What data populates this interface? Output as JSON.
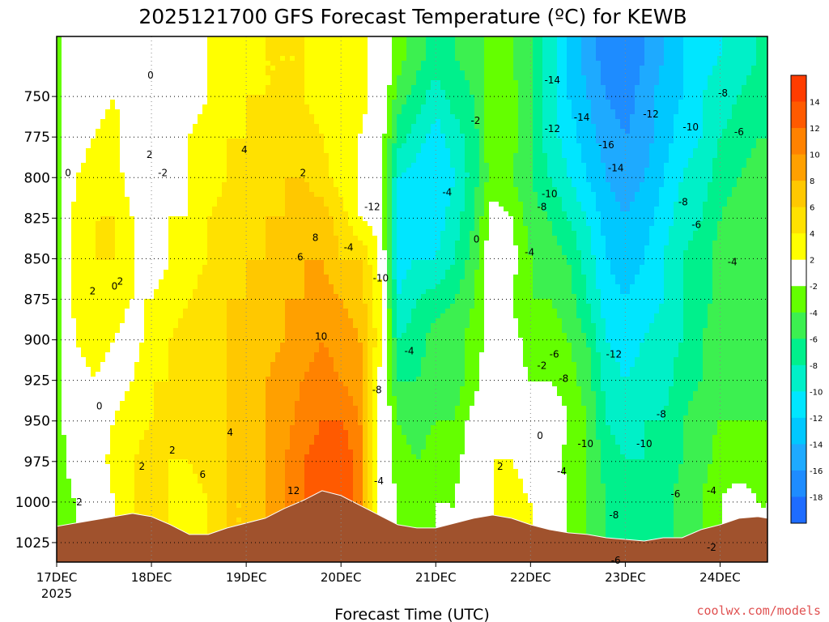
{
  "chart_data": {
    "type": "heatmap",
    "title": "2025121700 GFS Forecast Temperature (ºC) for KEWB",
    "xlabel": "Forecast Time (UTC)",
    "ylabel": "",
    "credit": "coolwx.com/models",
    "x_ticks": [
      "17DEC",
      "18DEC",
      "19DEC",
      "20DEC",
      "21DEC",
      "22DEC",
      "23DEC",
      "24DEC"
    ],
    "x_year": "2025",
    "xlim_days": [
      0,
      7.5
    ],
    "y_ticks": [
      750,
      775,
      800,
      825,
      850,
      875,
      900,
      925,
      950,
      975,
      1000,
      1025
    ],
    "ylim_hpa": [
      713,
      1037
    ],
    "grid": true,
    "colorbar": {
      "levels": [
        -18,
        -16,
        -14,
        -12,
        -10,
        -8,
        -6,
        -4,
        -2,
        2,
        4,
        6,
        8,
        10,
        12,
        14
      ],
      "tick_labels": [
        "-18",
        "-16",
        "-14",
        "-12",
        "-10",
        "-8",
        "-6",
        "-4",
        "-2",
        "2",
        "4",
        "6",
        "8",
        "10",
        "12",
        "14"
      ],
      "colors": [
        "#1e6cff",
        "#1e8cff",
        "#1eaaff",
        "#00c8ff",
        "#00e6ff",
        "#00f0c8",
        "#00f08c",
        "#3cf050",
        "#64ff00",
        "#ffffff",
        "#ffff00",
        "#ffe100",
        "#ffc800",
        "#ffa000",
        "#ff8200",
        "#ff5a00",
        "#ff3c00"
      ],
      "placement": "right"
    },
    "terrain_color": "#a0522d",
    "terrain": {
      "x": [
        0,
        0.2,
        0.4,
        0.6,
        0.8,
        1.0,
        1.2,
        1.4,
        1.6,
        1.8,
        2.0,
        2.2,
        2.4,
        2.6,
        2.8,
        3.0,
        3.2,
        3.4,
        3.6,
        3.8,
        4.0,
        4.2,
        4.4,
        4.6,
        4.8,
        5.0,
        5.2,
        5.4,
        5.6,
        5.8,
        6.0,
        6.2,
        6.4,
        6.6,
        6.8,
        7.0,
        7.2,
        7.4,
        7.5
      ],
      "p": [
        1015,
        1013,
        1011,
        1009,
        1007,
        1009,
        1014,
        1020,
        1020,
        1016,
        1013,
        1010,
        1004,
        999,
        993,
        996,
        1002,
        1008,
        1014,
        1016,
        1016,
        1013,
        1010,
        1008,
        1010,
        1014,
        1017,
        1019,
        1020,
        1022,
        1023,
        1024,
        1022,
        1022,
        1017,
        1014,
        1010,
        1009,
        1010
      ]
    },
    "fields": {
      "x": [
        0,
        0.2,
        0.4,
        0.6,
        0.8,
        1.0,
        1.2,
        1.4,
        1.6,
        1.8,
        2.0,
        2.2,
        2.4,
        2.6,
        2.8,
        3.0,
        3.2,
        3.4,
        3.6,
        3.8,
        4.0,
        4.2,
        4.4,
        4.6,
        4.8,
        5.0,
        5.2,
        5.4,
        5.6,
        5.8,
        6.0,
        6.2,
        6.4,
        6.6,
        6.8,
        7.0,
        7.2,
        7.4,
        7.5
      ],
      "p_levels": [
        725,
        750,
        775,
        800,
        825,
        850,
        875,
        900,
        925,
        950,
        975,
        1000,
        1025
      ],
      "temperature_c": [
        [
          -3,
          -3,
          -3,
          -3,
          -3,
          -3,
          -3,
          -3,
          -3,
          -3,
          -3,
          -3,
          -3
        ],
        [
          0,
          0,
          1,
          2,
          3,
          3,
          3,
          2,
          1,
          0,
          -1,
          -2,
          -2
        ],
        [
          1,
          1,
          2,
          3,
          4,
          4,
          3,
          3,
          2,
          1,
          0,
          -1,
          -1
        ],
        [
          2,
          2,
          3,
          3,
          4,
          4,
          3,
          2,
          1,
          2,
          3,
          2,
          2
        ],
        [
          1,
          1,
          0,
          1,
          2,
          2,
          2,
          1,
          2,
          3,
          4,
          4,
          3
        ],
        [
          0,
          0,
          -1,
          -2,
          1,
          1,
          2,
          3,
          4,
          4,
          5,
          5,
          4
        ],
        [
          1,
          1,
          1,
          1,
          2,
          2,
          3,
          4,
          4,
          4,
          4,
          4,
          4
        ],
        [
          1,
          1,
          2,
          2,
          2,
          3,
          4,
          5,
          5,
          4,
          4,
          3,
          3
        ],
        [
          2,
          2,
          3,
          3,
          4,
          4,
          5,
          5,
          5,
          6,
          5,
          4,
          4
        ],
        [
          3,
          3,
          4,
          4,
          5,
          5,
          6,
          6,
          6,
          6,
          6,
          6,
          6
        ],
        [
          3,
          4,
          4,
          5,
          5,
          6,
          6,
          7,
          7,
          7,
          7,
          6,
          6
        ],
        [
          4,
          4,
          5,
          5,
          6,
          6,
          7,
          7,
          8,
          8,
          8,
          8,
          8
        ],
        [
          4,
          4,
          5,
          6,
          6,
          7,
          8,
          8,
          9,
          9,
          10,
          10,
          10
        ],
        [
          4,
          4,
          5,
          6,
          7,
          8,
          8,
          9,
          10,
          11,
          12,
          12,
          12
        ],
        [
          3,
          3,
          4,
          5,
          7,
          8,
          9,
          10,
          11,
          12,
          13,
          13,
          13
        ],
        [
          3,
          3,
          2,
          3,
          5,
          6,
          8,
          9,
          10,
          12,
          14,
          14,
          14
        ],
        [
          3,
          3,
          2,
          2,
          2,
          6,
          7,
          8,
          9,
          10,
          11,
          11,
          11
        ],
        [
          1,
          1,
          0,
          0,
          1,
          2,
          3,
          3,
          2,
          1,
          0,
          0,
          0
        ],
        [
          -3,
          -5,
          -7,
          -10,
          -11,
          -11,
          -10,
          -8,
          -6,
          -4,
          -3,
          -2,
          -2
        ],
        [
          -5,
          -7,
          -9,
          -11,
          -11,
          -10,
          -8,
          -7,
          -6,
          -5,
          -4,
          -3,
          -3
        ],
        [
          -7,
          -9,
          -11,
          -12,
          -11,
          -10,
          -7,
          -5,
          -5,
          -4,
          -3,
          -2,
          -2
        ],
        [
          -6,
          -7,
          -9,
          -10,
          -9,
          -8,
          -6,
          -5,
          -5,
          -4,
          -3,
          -2,
          -2
        ],
        [
          -5,
          -6,
          -7,
          -7,
          -6,
          -5,
          -4,
          -3,
          -3,
          -1,
          0,
          1,
          1
        ],
        [
          -3,
          -2,
          -2,
          -3,
          -1,
          0,
          -1,
          -1,
          0,
          1,
          2,
          2,
          2
        ],
        [
          -4,
          -3,
          -3,
          -4,
          -2,
          -1,
          -2,
          -1,
          -1,
          0,
          2,
          3,
          3
        ],
        [
          -6,
          -6,
          -6,
          -6,
          -5,
          -4,
          -4,
          -3,
          -2,
          -1,
          1,
          2,
          2
        ],
        [
          -9,
          -9,
          -9,
          -8,
          -6,
          -5,
          -4,
          -3,
          -2,
          0,
          0,
          1,
          1
        ],
        [
          -12,
          -12,
          -11,
          -10,
          -8,
          -6,
          -5,
          -4,
          -3,
          -2,
          -3,
          -2,
          -2
        ],
        [
          -15,
          -14,
          -13,
          -12,
          -10,
          -9,
          -8,
          -6,
          -5,
          -4,
          -4,
          -4,
          -4
        ],
        [
          -17,
          -16,
          -15,
          -14,
          -13,
          -12,
          -11,
          -10,
          -9,
          -8,
          -7,
          -6,
          -6
        ],
        [
          -18,
          -17,
          -16,
          -15,
          -14,
          -13,
          -12,
          -11,
          -10,
          -9,
          -8,
          -7,
          -7
        ],
        [
          -16,
          -15,
          -15,
          -14,
          -13,
          -12,
          -11,
          -10,
          -9,
          -8,
          -8,
          -7,
          -7
        ],
        [
          -14,
          -13,
          -13,
          -12,
          -11,
          -10,
          -10,
          -9,
          -9,
          -8,
          -7,
          -7,
          -7
        ],
        [
          -12,
          -12,
          -11,
          -10,
          -9,
          -8,
          -8,
          -8,
          -7,
          -6,
          -6,
          -5,
          -5
        ],
        [
          -11,
          -10,
          -10,
          -9,
          -8,
          -7,
          -7,
          -6,
          -6,
          -5,
          -5,
          -4,
          -4
        ],
        [
          -10,
          -9,
          -8,
          -7,
          -6,
          -5,
          -5,
          -5,
          -5,
          -4,
          -3,
          -2,
          -2
        ],
        [
          -9,
          -8,
          -7,
          -6,
          -5,
          -4,
          -4,
          -4,
          -5,
          -4,
          -3,
          -1,
          -1
        ],
        [
          -8,
          -7,
          -6,
          -5,
          -5,
          -5,
          -5,
          -5,
          -5,
          -4,
          -3,
          -2,
          -2
        ],
        [
          -8,
          -7,
          -6,
          -6,
          -5,
          -5,
          -5,
          -5,
          -5,
          -4,
          -3,
          -2,
          -2
        ]
      ]
    },
    "contour_labels": [
      {
        "text": "0",
        "x": 0.99,
        "p": 737
      },
      {
        "text": "0",
        "x": 0.12,
        "p": 797
      },
      {
        "text": "2",
        "x": 0.98,
        "p": 786
      },
      {
        "text": "-2",
        "x": 1.12,
        "p": 797
      },
      {
        "text": "4",
        "x": 1.98,
        "p": 783
      },
      {
        "text": "2",
        "x": 2.6,
        "p": 797
      },
      {
        "text": "8",
        "x": 2.73,
        "p": 837
      },
      {
        "text": "6",
        "x": 2.57,
        "p": 849
      },
      {
        "text": "-4",
        "x": 3.08,
        "p": 843
      },
      {
        "text": "2",
        "x": 0.38,
        "p": 870
      },
      {
        "text": "0",
        "x": 0.61,
        "p": 867
      },
      {
        "text": "2",
        "x": 0.67,
        "p": 864
      },
      {
        "text": "10",
        "x": 2.79,
        "p": 898
      },
      {
        "text": "0",
        "x": 0.45,
        "p": 941
      },
      {
        "text": "4",
        "x": 1.83,
        "p": 957
      },
      {
        "text": "2",
        "x": 0.9,
        "p": 978
      },
      {
        "text": "2",
        "x": 1.22,
        "p": 968
      },
      {
        "text": "6",
        "x": 1.54,
        "p": 983
      },
      {
        "text": "12",
        "x": 2.5,
        "p": 993
      },
      {
        "text": "-2",
        "x": 0.22,
        "p": 1000
      },
      {
        "text": "-12",
        "x": 3.33,
        "p": 818
      },
      {
        "text": "-10",
        "x": 3.42,
        "p": 862
      },
      {
        "text": "-4",
        "x": 3.72,
        "p": 907
      },
      {
        "text": "-8",
        "x": 3.38,
        "p": 931
      },
      {
        "text": "-4",
        "x": 3.4,
        "p": 987
      },
      {
        "text": "-4",
        "x": 4.12,
        "p": 809
      },
      {
        "text": "-2",
        "x": 4.42,
        "p": 765
      },
      {
        "text": "0",
        "x": 4.43,
        "p": 838
      },
      {
        "text": "2",
        "x": 4.68,
        "p": 978
      },
      {
        "text": "-4",
        "x": 4.99,
        "p": 846
      },
      {
        "text": "-6",
        "x": 5.25,
        "p": 909
      },
      {
        "text": "-2",
        "x": 5.12,
        "p": 916
      },
      {
        "text": "-8",
        "x": 5.35,
        "p": 924
      },
      {
        "text": "0",
        "x": 5.1,
        "p": 959
      },
      {
        "text": "-4",
        "x": 5.33,
        "p": 981
      },
      {
        "text": "-14",
        "x": 5.23,
        "p": 740
      },
      {
        "text": "-14",
        "x": 5.54,
        "p": 763
      },
      {
        "text": "-12",
        "x": 5.23,
        "p": 770
      },
      {
        "text": "-16",
        "x": 5.8,
        "p": 780
      },
      {
        "text": "-10",
        "x": 5.2,
        "p": 810
      },
      {
        "text": "-8",
        "x": 5.12,
        "p": 818
      },
      {
        "text": "-14",
        "x": 5.9,
        "p": 794
      },
      {
        "text": "-12",
        "x": 6.27,
        "p": 761
      },
      {
        "text": "-10",
        "x": 6.69,
        "p": 769
      },
      {
        "text": "-8",
        "x": 7.03,
        "p": 748
      },
      {
        "text": "-6",
        "x": 7.2,
        "p": 772
      },
      {
        "text": "-8",
        "x": 6.61,
        "p": 815
      },
      {
        "text": "-6",
        "x": 6.75,
        "p": 829
      },
      {
        "text": "-4",
        "x": 7.13,
        "p": 852
      },
      {
        "text": "-12",
        "x": 5.88,
        "p": 909
      },
      {
        "text": "-10",
        "x": 5.58,
        "p": 964
      },
      {
        "text": "-10",
        "x": 6.2,
        "p": 964
      },
      {
        "text": "-8",
        "x": 6.38,
        "p": 946
      },
      {
        "text": "-6",
        "x": 6.53,
        "p": 995
      },
      {
        "text": "-4",
        "x": 6.91,
        "p": 993
      },
      {
        "text": "-8",
        "x": 5.88,
        "p": 1008
      },
      {
        "text": "-6",
        "x": 5.9,
        "p": 1036
      },
      {
        "text": "-2",
        "x": 6.91,
        "p": 1028
      }
    ]
  }
}
